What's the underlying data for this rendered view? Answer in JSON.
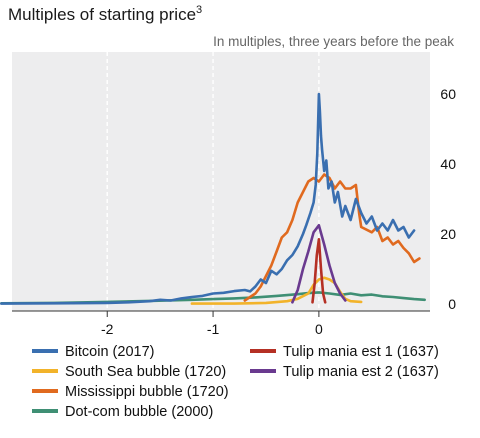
{
  "title": "Multiples of starting price",
  "title_superscript": "3",
  "subtitle": "In multiples, three years before the peak",
  "chart_data": {
    "type": "line",
    "title": "Multiples of starting price",
    "subtitle": "In multiples, three years before the peak",
    "xlabel": "",
    "ylabel": "",
    "xlim": [
      -2.9,
      1.05
    ],
    "ylim": [
      -2,
      72
    ],
    "x_ticks": [
      -2,
      -1,
      0
    ],
    "x_tick_labels": [
      "-2",
      "-1",
      "0"
    ],
    "y_ticks": [
      0,
      20,
      40,
      60
    ],
    "y_tick_labels": [
      "0",
      "20",
      "40",
      "60"
    ],
    "y_axis_position": "right",
    "grid": "vertical dashed at x ticks",
    "background": "#ededee",
    "legend_position": "bottom",
    "series": [
      {
        "name": "Bitcoin (2017)",
        "color": "#3a6fb0",
        "points": [
          [
            -3.0,
            0.1
          ],
          [
            -2.5,
            0.2
          ],
          [
            -2.0,
            0.3
          ],
          [
            -1.8,
            0.5
          ],
          [
            -1.6,
            0.8
          ],
          [
            -1.5,
            1.2
          ],
          [
            -1.4,
            1.0
          ],
          [
            -1.3,
            1.6
          ],
          [
            -1.2,
            2.0
          ],
          [
            -1.1,
            2.3
          ],
          [
            -1.0,
            3.0
          ],
          [
            -0.9,
            3.2
          ],
          [
            -0.8,
            3.7
          ],
          [
            -0.7,
            4.0
          ],
          [
            -0.65,
            3.6
          ],
          [
            -0.6,
            5.0
          ],
          [
            -0.55,
            7.0
          ],
          [
            -0.5,
            6.0
          ],
          [
            -0.45,
            9.5
          ],
          [
            -0.4,
            8.5
          ],
          [
            -0.35,
            10.0
          ],
          [
            -0.3,
            12.5
          ],
          [
            -0.25,
            14.0
          ],
          [
            -0.2,
            16.5
          ],
          [
            -0.15,
            20.0
          ],
          [
            -0.12,
            22.5
          ],
          [
            -0.08,
            26.0
          ],
          [
            -0.05,
            29.0
          ],
          [
            -0.03,
            34.0
          ],
          [
            -0.015,
            43.0
          ],
          [
            0.0,
            60.0
          ],
          [
            0.01,
            55.0
          ],
          [
            0.02,
            48.0
          ],
          [
            0.03,
            44.0
          ],
          [
            0.05,
            38.0
          ],
          [
            0.07,
            41.0
          ],
          [
            0.09,
            33.0
          ],
          [
            0.12,
            35.0
          ],
          [
            0.15,
            29.0
          ],
          [
            0.18,
            32.0
          ],
          [
            0.22,
            25.0
          ],
          [
            0.25,
            28.0
          ],
          [
            0.3,
            24.0
          ],
          [
            0.35,
            30.0
          ],
          [
            0.4,
            26.0
          ],
          [
            0.45,
            23.0
          ],
          [
            0.5,
            25.0
          ],
          [
            0.55,
            21.0
          ],
          [
            0.6,
            23.0
          ],
          [
            0.65,
            21.0
          ],
          [
            0.7,
            24.0
          ],
          [
            0.75,
            21.0
          ],
          [
            0.8,
            22.0
          ],
          [
            0.85,
            19.0
          ],
          [
            0.9,
            21.0
          ]
        ]
      },
      {
        "name": "South Sea bubble (1720)",
        "color": "#f2b32a",
        "points": [
          [
            -1.2,
            0.1
          ],
          [
            -0.8,
            0.1
          ],
          [
            -0.5,
            0.3
          ],
          [
            -0.3,
            0.8
          ],
          [
            -0.2,
            1.5
          ],
          [
            -0.1,
            3.0
          ],
          [
            -0.05,
            5.5
          ],
          [
            0.0,
            7.0
          ],
          [
            0.05,
            7.5
          ],
          [
            0.1,
            7.0
          ],
          [
            0.15,
            6.0
          ],
          [
            0.2,
            3.5
          ],
          [
            0.25,
            1.5
          ],
          [
            0.3,
            0.8
          ],
          [
            0.4,
            0.6
          ]
        ]
      },
      {
        "name": "Mississippi bubble (1720)",
        "color": "#e06a1f",
        "points": [
          [
            -0.7,
            1.0
          ],
          [
            -0.6,
            3.0
          ],
          [
            -0.55,
            5.0
          ],
          [
            -0.5,
            8.0
          ],
          [
            -0.45,
            11.0
          ],
          [
            -0.4,
            15.0
          ],
          [
            -0.35,
            19.0
          ],
          [
            -0.3,
            20.5
          ],
          [
            -0.25,
            24.0
          ],
          [
            -0.2,
            29.0
          ],
          [
            -0.15,
            32.0
          ],
          [
            -0.1,
            35.0
          ],
          [
            -0.05,
            36.0
          ],
          [
            0.0,
            35.0
          ],
          [
            0.05,
            37.0
          ],
          [
            0.1,
            36.0
          ],
          [
            0.15,
            33.0
          ],
          [
            0.2,
            35.0
          ],
          [
            0.25,
            33.0
          ],
          [
            0.3,
            33.0
          ],
          [
            0.35,
            34.0
          ],
          [
            0.38,
            26.0
          ],
          [
            0.4,
            22.0
          ],
          [
            0.5,
            20.5
          ],
          [
            0.55,
            22.0
          ],
          [
            0.6,
            18.0
          ],
          [
            0.65,
            19.0
          ],
          [
            0.7,
            17.0
          ],
          [
            0.75,
            18.0
          ],
          [
            0.8,
            16.0
          ],
          [
            0.85,
            14.5
          ],
          [
            0.9,
            12.0
          ],
          [
            0.95,
            13.0
          ]
        ]
      },
      {
        "name": "Dot-com bubble (2000)",
        "color": "#3f8f74",
        "points": [
          [
            -3.0,
            0.2
          ],
          [
            -2.5,
            0.3
          ],
          [
            -2.0,
            0.6
          ],
          [
            -1.6,
            0.9
          ],
          [
            -1.2,
            1.2
          ],
          [
            -1.0,
            1.4
          ],
          [
            -0.8,
            1.6
          ],
          [
            -0.6,
            1.9
          ],
          [
            -0.4,
            2.3
          ],
          [
            -0.2,
            2.8
          ],
          [
            -0.1,
            3.1
          ],
          [
            0.0,
            3.3
          ],
          [
            0.1,
            3.0
          ],
          [
            0.2,
            2.6
          ],
          [
            0.3,
            3.0
          ],
          [
            0.4,
            2.5
          ],
          [
            0.5,
            2.7
          ],
          [
            0.6,
            2.2
          ],
          [
            0.7,
            2.0
          ],
          [
            0.8,
            1.7
          ],
          [
            0.9,
            1.4
          ],
          [
            1.0,
            1.2
          ]
        ]
      },
      {
        "name": "Tulip mania est 1 (1637)",
        "color": "#b53024",
        "points": [
          [
            -0.06,
            0.5
          ],
          [
            -0.04,
            6.0
          ],
          [
            -0.02,
            14.0
          ],
          [
            0.0,
            18.5
          ],
          [
            0.02,
            10.0
          ],
          [
            0.04,
            3.0
          ],
          [
            0.06,
            0.5
          ]
        ]
      },
      {
        "name": "Tulip mania est 2 (1637)",
        "color": "#6a3a8f",
        "points": [
          [
            -0.25,
            0.5
          ],
          [
            -0.2,
            4.0
          ],
          [
            -0.15,
            10.0
          ],
          [
            -0.1,
            15.0
          ],
          [
            -0.05,
            20.5
          ],
          [
            0.0,
            22.5
          ],
          [
            0.05,
            17.0
          ],
          [
            0.1,
            11.0
          ],
          [
            0.15,
            6.0
          ],
          [
            0.2,
            3.0
          ],
          [
            0.25,
            1.0
          ]
        ]
      }
    ]
  }
}
